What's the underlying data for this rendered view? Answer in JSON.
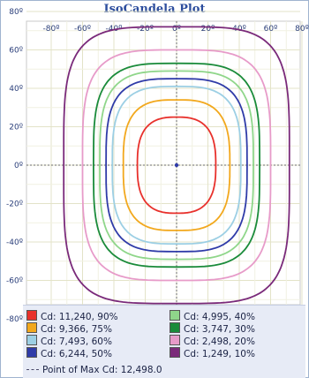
{
  "chart_data": {
    "type": "line",
    "title": "IsoCandela Plot",
    "x_ticks": [
      "-80º",
      "-60º",
      "-40º",
      "-20º",
      "0º",
      "20º",
      "40º",
      "60º",
      "80º"
    ],
    "y_ticks": [
      "80º",
      "60º",
      "40º",
      "20º",
      "0º",
      "-20º",
      "-40º",
      "-60º",
      "-80º"
    ],
    "xlim": [
      -90,
      90
    ],
    "ylim": [
      -90,
      90
    ],
    "grid": true,
    "legend_position": "bottom",
    "center_point": [
      0,
      0
    ],
    "series": [
      {
        "name": "Cd: 11,240, 90%",
        "color": "#e8312c",
        "half_width_deg": 25
      },
      {
        "name": "Cd: 9,366, 75%",
        "color": "#f2a81d",
        "half_width_deg": 34
      },
      {
        "name": "Cd: 7,493, 60%",
        "color": "#9ccfe4",
        "half_width_deg": 41
      },
      {
        "name": "Cd: 6,244, 50%",
        "color": "#2f3ba8",
        "half_width_deg": 45
      },
      {
        "name": "Cd: 4,995, 40%",
        "color": "#8fd68a",
        "half_width_deg": 49
      },
      {
        "name": "Cd: 3,747, 30%",
        "color": "#1a8b3a",
        "half_width_deg": 53
      },
      {
        "name": "Cd: 2,498, 20%",
        "color": "#e79bc9",
        "half_width_deg": 60
      },
      {
        "name": "Cd: 1,249, 10%",
        "color": "#7a2a7a",
        "half_width_deg": 72
      }
    ],
    "max_point_label": "Point of Max Cd: 12,498.0"
  }
}
